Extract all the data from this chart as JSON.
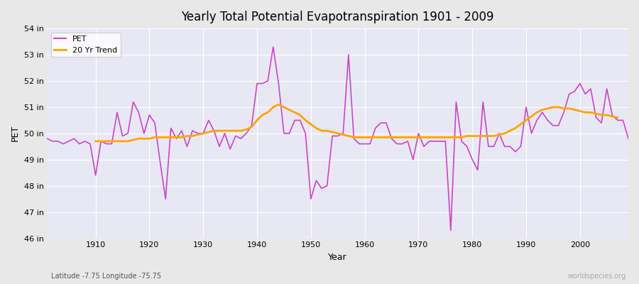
{
  "title": "Yearly Total Potential Evapotranspiration 1901 - 2009",
  "xlabel": "Year",
  "ylabel": "PET",
  "subtitle_left": "Latitude -7.75 Longitude -75.75",
  "subtitle_right": "worldspecies.org",
  "bg_color": "#e8e8e8",
  "plot_bg_color": "#f0f0f0",
  "pet_color": "#cc44cc",
  "trend_color": "#ffa500",
  "ylim": [
    46,
    54
  ],
  "yticks": [
    46,
    47,
    48,
    49,
    50,
    51,
    52,
    53,
    54
  ],
  "ytick_labels": [
    "46 in",
    "47 in",
    "48 in",
    "49 in",
    "50 in",
    "51 in",
    "52 in",
    "53 in",
    "54 in"
  ],
  "years": [
    1901,
    1902,
    1903,
    1904,
    1905,
    1906,
    1907,
    1908,
    1909,
    1910,
    1911,
    1912,
    1913,
    1914,
    1915,
    1916,
    1917,
    1918,
    1919,
    1920,
    1921,
    1922,
    1923,
    1924,
    1925,
    1926,
    1927,
    1928,
    1929,
    1930,
    1931,
    1932,
    1933,
    1934,
    1935,
    1936,
    1937,
    1938,
    1939,
    1940,
    1941,
    1942,
    1943,
    1944,
    1945,
    1946,
    1947,
    1948,
    1949,
    1950,
    1951,
    1952,
    1953,
    1954,
    1955,
    1956,
    1957,
    1958,
    1959,
    1960,
    1961,
    1962,
    1963,
    1964,
    1965,
    1966,
    1967,
    1968,
    1969,
    1970,
    1971,
    1972,
    1973,
    1974,
    1975,
    1976,
    1977,
    1978,
    1979,
    1980,
    1981,
    1982,
    1983,
    1984,
    1985,
    1986,
    1987,
    1988,
    1989,
    1990,
    1991,
    1992,
    1993,
    1994,
    1995,
    1996,
    1997,
    1998,
    1999,
    2000,
    2001,
    2002,
    2003,
    2004,
    2005,
    2006,
    2007,
    2008,
    2009
  ],
  "pet_values": [
    49.8,
    49.7,
    49.7,
    49.6,
    49.7,
    49.8,
    49.6,
    49.7,
    49.6,
    48.4,
    49.7,
    49.6,
    49.6,
    50.8,
    49.9,
    50.0,
    51.2,
    50.8,
    50.0,
    50.7,
    50.4,
    48.9,
    47.5,
    50.2,
    49.8,
    50.1,
    49.5,
    50.1,
    50.0,
    50.0,
    50.5,
    50.1,
    49.5,
    50.0,
    49.4,
    49.9,
    49.8,
    50.0,
    50.3,
    51.9,
    51.9,
    52.0,
    53.3,
    51.9,
    50.0,
    50.0,
    50.5,
    50.5,
    50.0,
    47.5,
    48.2,
    47.9,
    48.0,
    49.9,
    49.9,
    50.0,
    53.0,
    49.8,
    49.6,
    49.6,
    49.6,
    50.2,
    50.4,
    50.4,
    49.8,
    49.6,
    49.6,
    49.7,
    49.0,
    50.0,
    49.5,
    49.7,
    49.7,
    49.7,
    49.7,
    46.3,
    51.2,
    49.7,
    49.5,
    49.0,
    48.6,
    51.2,
    49.5,
    49.5,
    50.0,
    49.5,
    49.5,
    49.3,
    49.5,
    51.0,
    50.0,
    50.5,
    50.8,
    50.5,
    50.3,
    50.3,
    50.8,
    51.5,
    51.6,
    51.9,
    51.5,
    51.7,
    50.6,
    50.4,
    51.7,
    50.7,
    50.5,
    50.5,
    49.8
  ],
  "trend_values": [
    null,
    null,
    null,
    null,
    null,
    null,
    null,
    null,
    null,
    49.7,
    49.7,
    49.7,
    49.7,
    49.7,
    49.7,
    49.7,
    49.75,
    49.8,
    49.8,
    49.8,
    49.85,
    49.85,
    49.85,
    49.85,
    49.85,
    49.85,
    49.9,
    49.9,
    49.95,
    50.0,
    50.05,
    50.1,
    50.1,
    50.1,
    50.1,
    50.1,
    50.1,
    50.15,
    50.25,
    50.5,
    50.7,
    50.8,
    51.0,
    51.1,
    51.0,
    50.9,
    50.8,
    50.7,
    50.5,
    50.35,
    50.2,
    50.1,
    50.1,
    50.05,
    50.0,
    49.95,
    49.9,
    49.85,
    49.85,
    49.85,
    49.85,
    49.85,
    49.85,
    49.85,
    49.85,
    49.85,
    49.85,
    49.85,
    49.85,
    49.85,
    49.85,
    49.85,
    49.85,
    49.85,
    49.85,
    49.85,
    49.85,
    49.85,
    49.9,
    49.9,
    49.9,
    49.9,
    49.9,
    49.9,
    49.95,
    50.0,
    50.1,
    50.2,
    50.35,
    50.5,
    50.65,
    50.8,
    50.9,
    50.95,
    51.0,
    51.0,
    50.95,
    50.95,
    50.9,
    50.85,
    50.8,
    50.8,
    50.75,
    50.7,
    50.7,
    50.65,
    50.6
  ]
}
